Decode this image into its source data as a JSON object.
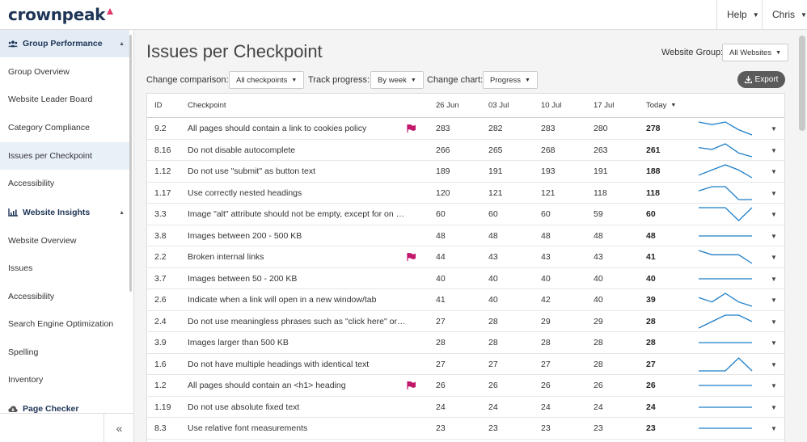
{
  "header": {
    "logo_text": "crownpeak",
    "help_label": "Help",
    "user_label": "Chris"
  },
  "sidebar": {
    "sections": [
      {
        "label": "Group Performance",
        "icon": "group-icon",
        "items": [
          "Group Overview",
          "Website Leader Board",
          "Category Compliance",
          "Issues per Checkpoint",
          "Accessibility"
        ]
      },
      {
        "label": "Website Insights",
        "icon": "chart-icon",
        "items": [
          "Website Overview",
          "Issues",
          "Accessibility",
          "Search Engine Optimization",
          "Spelling",
          "Inventory"
        ]
      },
      {
        "label": "Page Checker",
        "icon": "cloud-icon"
      }
    ],
    "collapse_label": "«"
  },
  "main": {
    "title": "Issues per Checkpoint",
    "website_group_label": "Website Group:",
    "website_group_value": "All Websites",
    "change_comparison_label": "Change comparison:",
    "change_comparison_value": "All checkpoints",
    "track_progress_label": "Track progress:",
    "track_progress_value": "By week",
    "change_chart_label": "Change chart:",
    "change_chart_value": "Progress",
    "export_label": "Export"
  },
  "table": {
    "columns": [
      "ID",
      "Checkpoint",
      "26 Jun",
      "03 Jul",
      "10 Jul",
      "17 Jul",
      "Today"
    ],
    "accent_color": "#1e7ec8",
    "flag_color": "#c2186b",
    "rows": [
      {
        "id": "9.2",
        "name": "All pages should contain a link to cookies policy",
        "flag": true,
        "v": [
          283,
          282,
          283,
          280,
          278
        ]
      },
      {
        "id": "8.16",
        "name": "Do not disable autocomplete",
        "flag": false,
        "v": [
          266,
          265,
          268,
          263,
          261
        ]
      },
      {
        "id": "1.12",
        "name": "Do not use \"submit\" as button text",
        "flag": false,
        "v": [
          189,
          191,
          193,
          191,
          188
        ]
      },
      {
        "id": "1.17",
        "name": "Use correctly nested headings",
        "flag": false,
        "v": [
          120,
          121,
          121,
          118,
          118
        ]
      },
      {
        "id": "3.3",
        "name": "Image \"alt\" attribute should not be empty, except for on k...",
        "flag": false,
        "v": [
          60,
          60,
          60,
          59,
          60
        ]
      },
      {
        "id": "3.8",
        "name": "Images between 200 - 500 KB",
        "flag": false,
        "v": [
          48,
          48,
          48,
          48,
          48
        ]
      },
      {
        "id": "2.2",
        "name": "Broken internal links",
        "flag": true,
        "v": [
          44,
          43,
          43,
          43,
          41
        ]
      },
      {
        "id": "3.7",
        "name": "Images between 50 - 200 KB",
        "flag": false,
        "v": [
          40,
          40,
          40,
          40,
          40
        ]
      },
      {
        "id": "2.6",
        "name": "Indicate when a link will open in a new window/tab",
        "flag": false,
        "v": [
          41,
          40,
          42,
          40,
          39
        ]
      },
      {
        "id": "2.4",
        "name": "Do not use meaningless phrases such as \"click here\" or \"...",
        "flag": false,
        "v": [
          27,
          28,
          29,
          29,
          28
        ]
      },
      {
        "id": "3.9",
        "name": "Images larger than 500 KB",
        "flag": false,
        "v": [
          28,
          28,
          28,
          28,
          28
        ]
      },
      {
        "id": "1.6",
        "name": "Do not have multiple headings with identical text",
        "flag": false,
        "v": [
          27,
          27,
          27,
          28,
          27
        ]
      },
      {
        "id": "1.2",
        "name": "All pages should contain an <h1> heading",
        "flag": true,
        "v": [
          26,
          26,
          26,
          26,
          26
        ]
      },
      {
        "id": "1.19",
        "name": "Do not use absolute fixed text",
        "flag": false,
        "v": [
          24,
          24,
          24,
          24,
          24
        ]
      },
      {
        "id": "8.3",
        "name": "Use relative font measurements",
        "flag": false,
        "v": [
          23,
          23,
          23,
          23,
          23
        ]
      }
    ]
  }
}
